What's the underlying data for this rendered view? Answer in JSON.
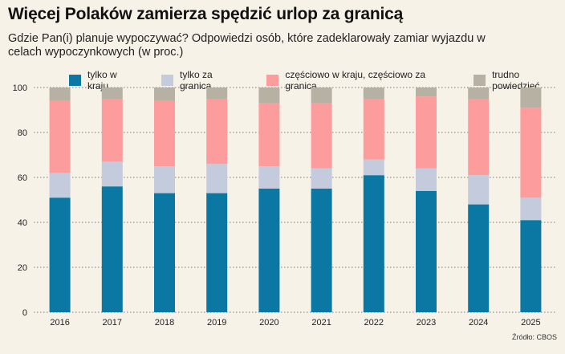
{
  "title": "Więcej Polaków zamierza spędzić urlop za granicą",
  "subtitle": "Gdzie Pan(i) planuje wypoczywać? Odpowiedzi osób, które zadeklarowały zamiar wyjazdu w celach wypoczynkowych (w proc.)",
  "source": "Źródło: CBOS",
  "chart_data": {
    "type": "bar",
    "stacked": true,
    "categories": [
      "2016",
      "2017",
      "2018",
      "2019",
      "2020",
      "2021",
      "2022",
      "2023",
      "2024",
      "2025"
    ],
    "series": [
      {
        "name": "tylko w kraju",
        "color": "#0a78a3",
        "values": [
          51,
          56,
          53,
          53,
          55,
          55,
          61,
          54,
          48,
          41
        ]
      },
      {
        "name": "tylko za granicą",
        "color": "#c3cbdc",
        "values": [
          11,
          11,
          12,
          13,
          10,
          9,
          7,
          10,
          13,
          10
        ]
      },
      {
        "name": "częściowo w kraju, częściowo za granicą",
        "color": "#fd9c9c",
        "values": [
          32,
          28,
          29,
          29,
          28,
          29,
          27,
          32,
          34,
          40
        ]
      },
      {
        "name": "trudno powiedzieć",
        "color": "#b7b1a3",
        "values": [
          6,
          5,
          6,
          5,
          7,
          7,
          5,
          4,
          5,
          9
        ]
      }
    ],
    "ylim": [
      0,
      100
    ],
    "yticks": [
      0,
      20,
      40,
      60,
      80,
      100
    ],
    "grid": true,
    "legend": "top"
  }
}
